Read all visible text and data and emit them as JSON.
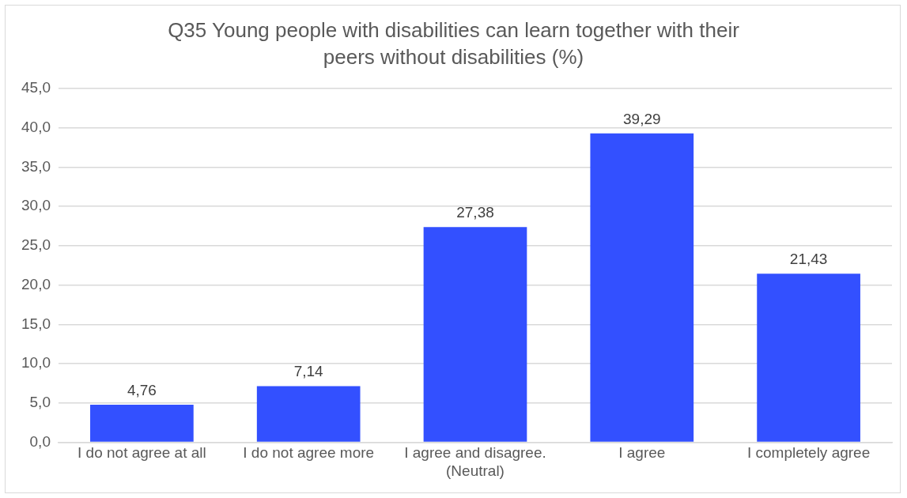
{
  "chart_data": {
    "type": "bar",
    "title": "Q35 Young people with disabilities can learn together with their peers without disabilities (%)",
    "categories": [
      "I do not agree at all",
      "I do not agree more",
      "I agree and disagree. (Neutral)",
      "I agree",
      "I completely agree"
    ],
    "values": [
      4.76,
      7.14,
      27.38,
      39.29,
      21.43
    ],
    "value_labels": [
      "4,76",
      "7,14",
      "27,38",
      "39,29",
      "21,43"
    ],
    "color": "#3350ff",
    "ylim": [
      0,
      45
    ],
    "yticks": [
      {
        "value": 0,
        "label": "0,0"
      },
      {
        "value": 5,
        "label": "5,0"
      },
      {
        "value": 10,
        "label": "10,0"
      },
      {
        "value": 15,
        "label": "15,0"
      },
      {
        "value": 20,
        "label": "20,0"
      },
      {
        "value": 25,
        "label": "25,0"
      },
      {
        "value": 30,
        "label": "30,0"
      },
      {
        "value": 35,
        "label": "35,0"
      },
      {
        "value": 40,
        "label": "40,0"
      },
      {
        "value": 45,
        "label": "45,0"
      }
    ],
    "grid": "y",
    "legend": false
  }
}
